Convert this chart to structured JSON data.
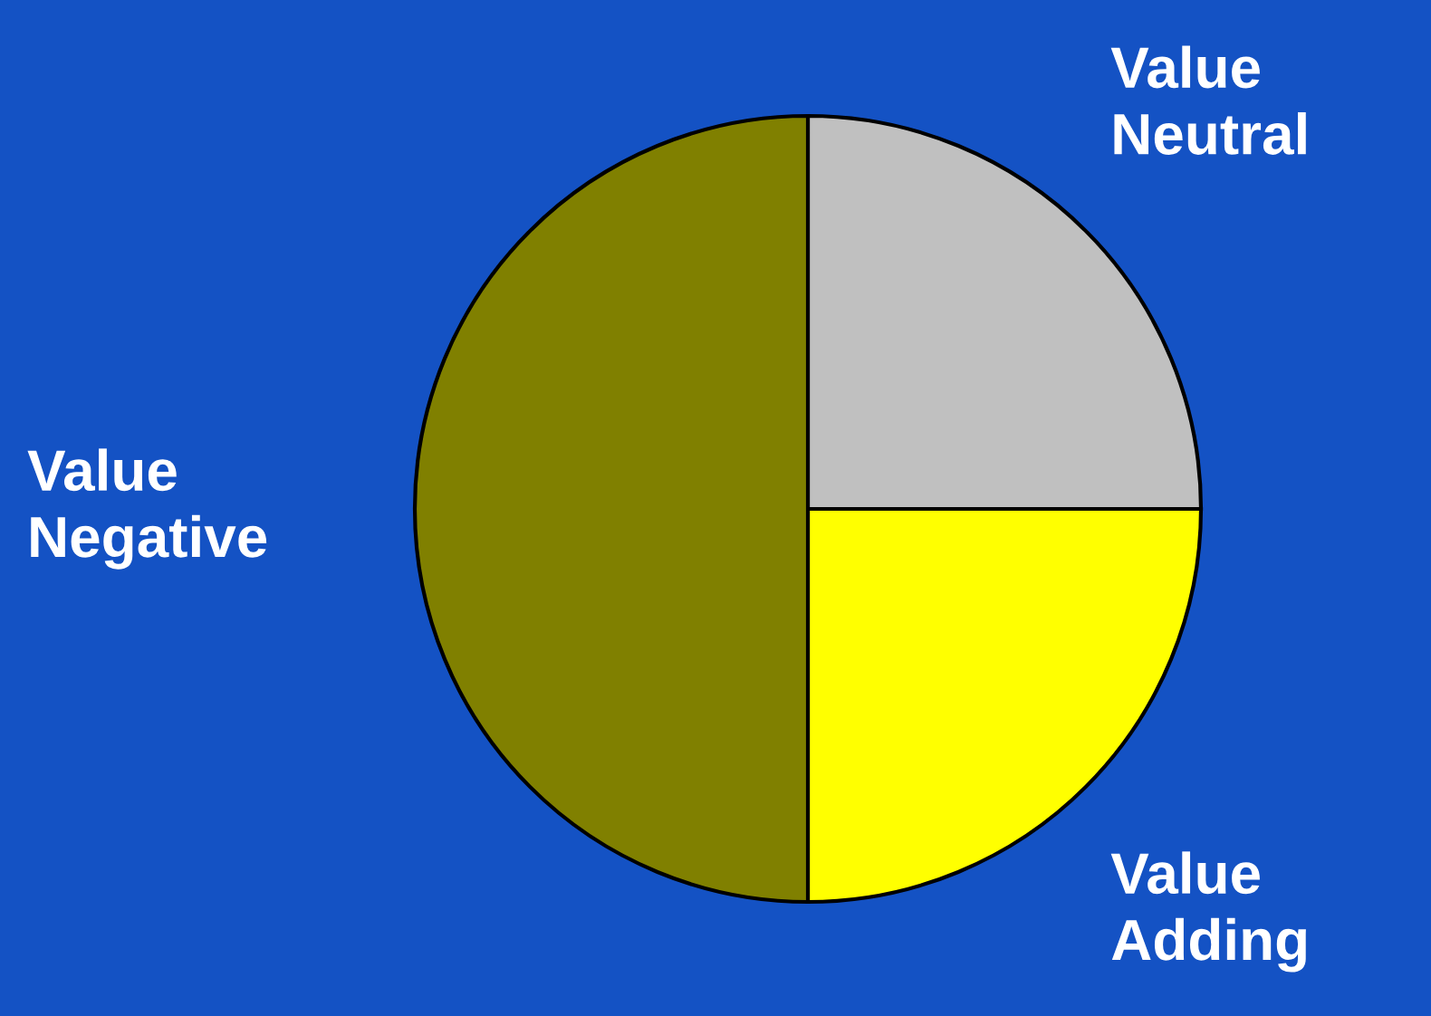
{
  "chart_data": {
    "type": "pie",
    "categories": [
      "Value\nNeutral",
      "Value\nAdding",
      "Value\nNegative"
    ],
    "values": [
      25,
      25,
      50
    ],
    "colors": [
      "#c0c0c0",
      "#ffff00",
      "#808000"
    ],
    "legend": false
  }
}
